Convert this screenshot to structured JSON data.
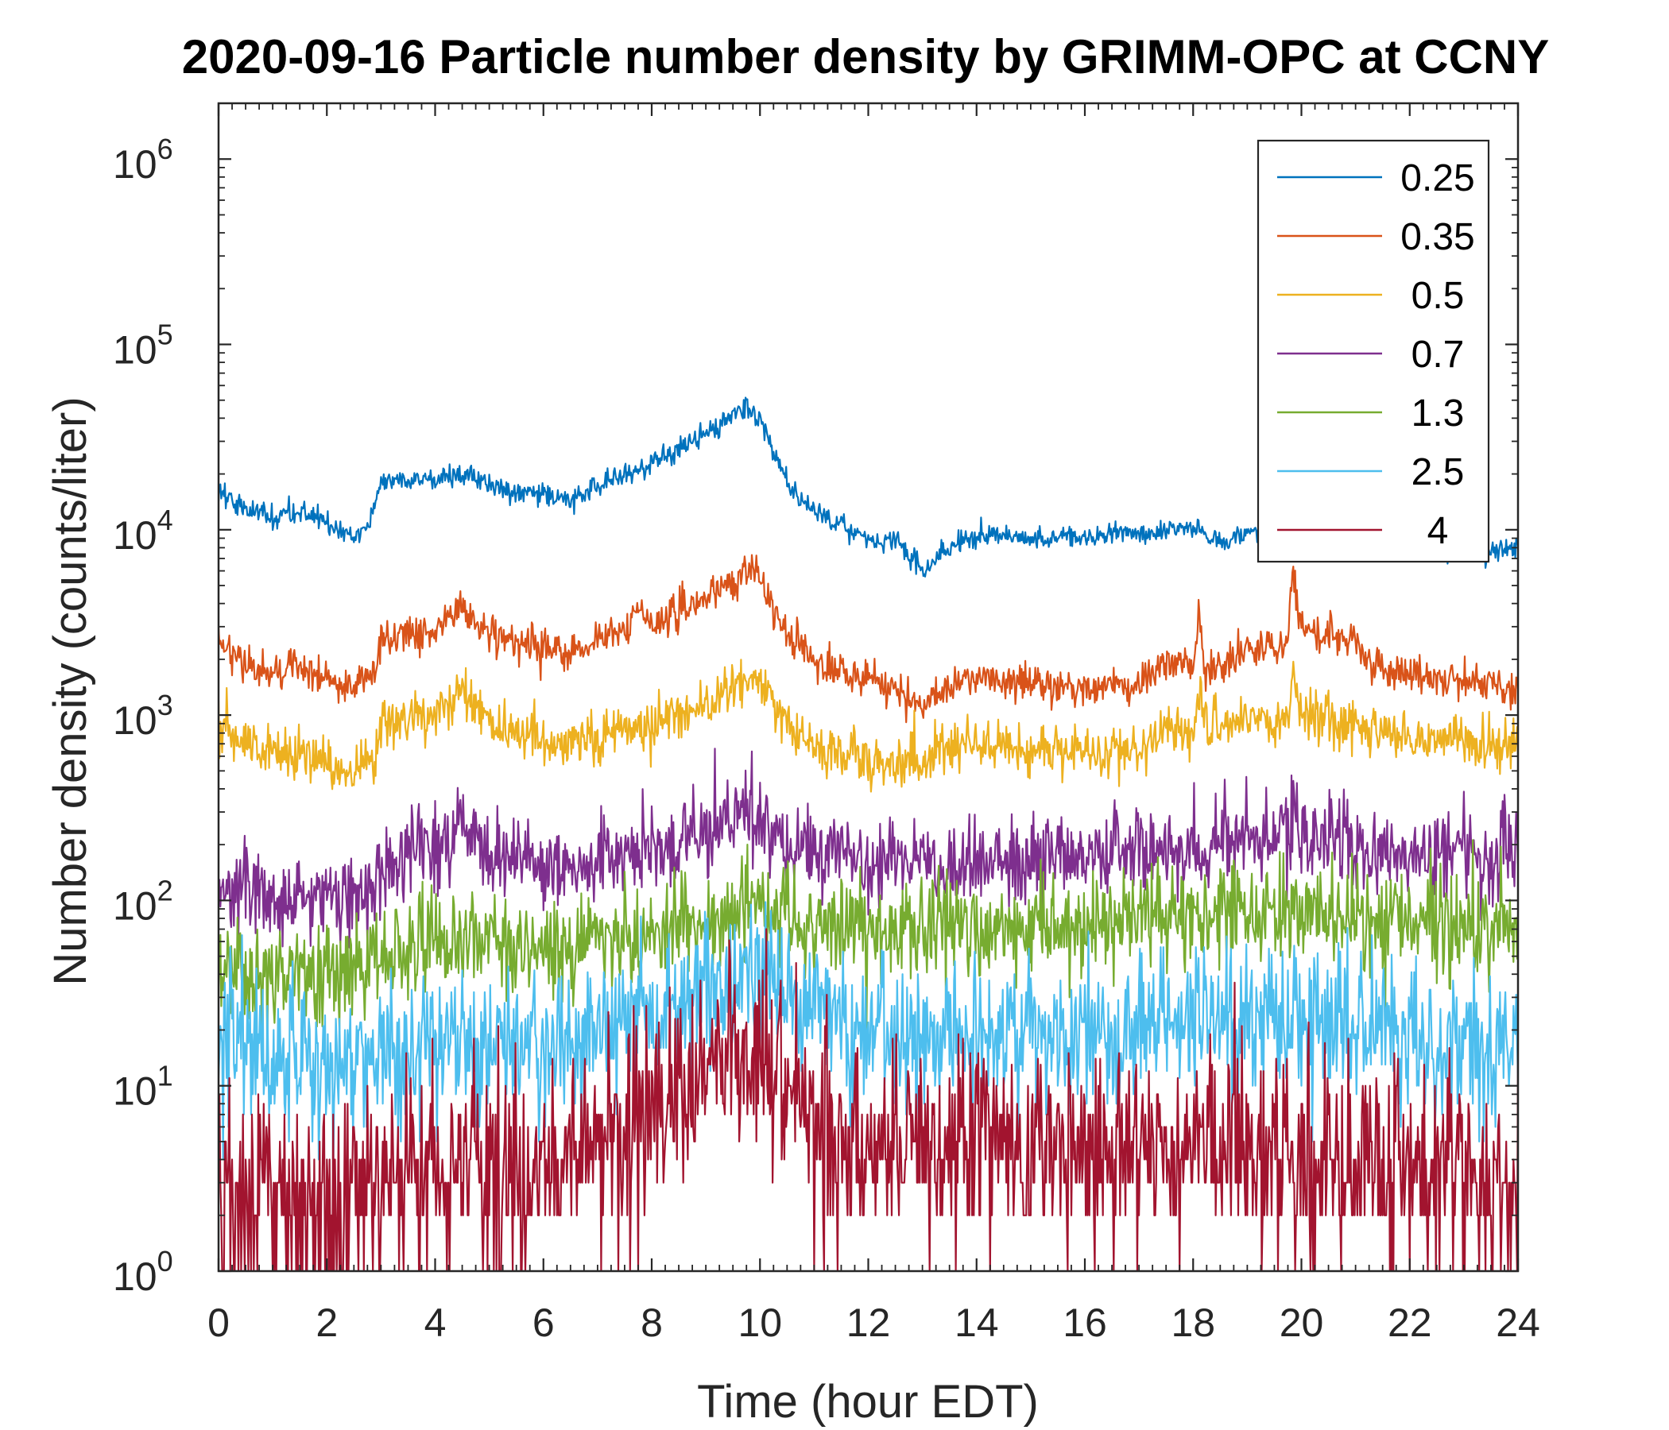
{
  "chart_data": {
    "type": "line",
    "title": "2020-09-16 Particle number density by GRIMM-OPC at CCNY",
    "xlabel": "Time (hour EDT)",
    "ylabel": "Number density (counts/liter)",
    "xlim": [
      0,
      24
    ],
    "ylim": [
      1,
      2000000
    ],
    "yscale": "log",
    "xticks": [
      0,
      2,
      4,
      6,
      8,
      10,
      12,
      14,
      16,
      18,
      20,
      22,
      24
    ],
    "yticks": [
      {
        "base": "10",
        "exp": "0",
        "value": 1
      },
      {
        "base": "10",
        "exp": "1",
        "value": 10
      },
      {
        "base": "10",
        "exp": "2",
        "value": 100
      },
      {
        "base": "10",
        "exp": "3",
        "value": 1000
      },
      {
        "base": "10",
        "exp": "4",
        "value": 10000
      },
      {
        "base": "10",
        "exp": "5",
        "value": 100000
      },
      {
        "base": "10",
        "exp": "6",
        "value": 1000000
      }
    ],
    "legend_position": "top-right",
    "box": true,
    "series": [
      {
        "name": "0.25",
        "color": "#0072BD",
        "noise": 0.03,
        "x": [
          0,
          0.5,
          1,
          1.5,
          2,
          2.5,
          2.8,
          3,
          4,
          4.5,
          5,
          5.5,
          6,
          6.5,
          7,
          8,
          9,
          9.5,
          9.7,
          10,
          10.3,
          10.6,
          11,
          11.5,
          12,
          12.5,
          13,
          13.5,
          14,
          15,
          16,
          17,
          18,
          18.5,
          19,
          20,
          21,
          22,
          23,
          24
        ],
        "values": [
          16000,
          13000,
          11500,
          13000,
          11000,
          9000,
          11000,
          18000,
          19000,
          20000,
          18000,
          15500,
          16000,
          14500,
          17000,
          23000,
          33000,
          41000,
          45000,
          40000,
          25000,
          16000,
          13000,
          10500,
          8800,
          9000,
          6000,
          8000,
          9300,
          9000,
          9000,
          9500,
          10500,
          8500,
          9800,
          9800,
          9000,
          8500,
          7500,
          8000
        ]
      },
      {
        "name": "0.35",
        "color": "#D95319",
        "noise": 0.05,
        "x": [
          0,
          0.5,
          1,
          1.5,
          2,
          2.5,
          2.9,
          3,
          4,
          4.5,
          5,
          5.5,
          6,
          6.5,
          7,
          7.6,
          7.7,
          8,
          9,
          9.8,
          10,
          10.3,
          10.6,
          11,
          12,
          12.5,
          13,
          13.5,
          14,
          15,
          16,
          17,
          17.6,
          18,
          18.1,
          18.2,
          19,
          19.75,
          19.85,
          19.95,
          20,
          21,
          21.3,
          22,
          23,
          24
        ],
        "values": [
          2500,
          1900,
          1700,
          1800,
          1550,
          1350,
          1600,
          2600,
          2800,
          3600,
          2800,
          2500,
          2200,
          2100,
          2500,
          3000,
          3800,
          3100,
          4200,
          6000,
          5400,
          3500,
          2500,
          1900,
          1600,
          1300,
          1050,
          1500,
          1550,
          1500,
          1400,
          1450,
          2000,
          1800,
          3600,
          1700,
          2200,
          2400,
          7000,
          3400,
          2900,
          2600,
          1800,
          1700,
          1500,
          1400
        ]
      },
      {
        "name": "0.5",
        "color": "#EDB120",
        "noise": 0.07,
        "x": [
          0,
          0.5,
          1,
          1.5,
          2,
          2.5,
          2.9,
          3,
          4,
          4.5,
          5,
          5.5,
          6,
          6.5,
          7,
          8,
          9,
          9.8,
          10,
          10.3,
          10.6,
          11,
          12,
          13,
          13.5,
          14,
          15,
          16,
          17,
          17.6,
          18,
          18.1,
          18.2,
          19,
          19.75,
          19.85,
          19.95,
          20,
          21,
          22,
          23,
          24
        ],
        "values": [
          900,
          680,
          620,
          640,
          570,
          480,
          600,
          900,
          1000,
          1400,
          900,
          800,
          720,
          680,
          780,
          900,
          1150,
          1600,
          1550,
          1100,
          800,
          650,
          570,
          530,
          700,
          680,
          650,
          620,
          650,
          900,
          800,
          1300,
          850,
          950,
          1000,
          2000,
          1100,
          1000,
          900,
          760,
          700,
          680
        ]
      },
      {
        "name": "0.7",
        "color": "#7E2F8E",
        "noise": 0.12,
        "x": [
          0,
          1,
          2,
          2.5,
          3,
          4,
          4.5,
          5,
          6,
          7,
          8,
          9,
          9.8,
          10,
          10.5,
          11,
          12,
          13,
          14,
          15,
          16,
          17,
          18,
          19,
          19.8,
          19.9,
          20,
          21,
          22,
          23,
          24
        ],
        "values": [
          120,
          110,
          110,
          100,
          150,
          200,
          250,
          180,
          150,
          160,
          180,
          220,
          300,
          280,
          200,
          170,
          170,
          160,
          170,
          170,
          170,
          180,
          200,
          210,
          220,
          400,
          210,
          200,
          180,
          180,
          170
        ]
      },
      {
        "name": "1.3",
        "color": "#77AC30",
        "noise": 0.14,
        "x": [
          0,
          1,
          2,
          2.5,
          3,
          4,
          5,
          6,
          7,
          8,
          9,
          9.8,
          10,
          10.5,
          11,
          12,
          13,
          14,
          15,
          16,
          17,
          18,
          19,
          20,
          21,
          22,
          23,
          24
        ],
        "values": [
          45,
          40,
          42,
          40,
          50,
          60,
          60,
          58,
          62,
          68,
          75,
          95,
          100,
          80,
          70,
          70,
          68,
          70,
          72,
          72,
          80,
          90,
          90,
          85,
          80,
          78,
          75,
          75
        ]
      },
      {
        "name": "2.5",
        "color": "#4DBEEE",
        "noise": 0.2,
        "x": [
          0,
          1,
          2,
          3,
          4,
          5,
          6,
          7,
          8,
          9,
          9.8,
          10,
          10.5,
          11,
          12,
          13,
          14,
          15,
          16,
          17,
          18,
          19,
          20,
          21,
          22,
          23,
          24
        ],
        "values": [
          18,
          15,
          14,
          14,
          17,
          18,
          18,
          20,
          25,
          32,
          42,
          40,
          30,
          24,
          20,
          19,
          20,
          20,
          20,
          21,
          21,
          22,
          22,
          20,
          18,
          16,
          16
        ]
      },
      {
        "name": "4",
        "color": "#A2142F",
        "noise": 0.28,
        "x": [
          0,
          1,
          2,
          3,
          4,
          5,
          6,
          7,
          8,
          9,
          9.8,
          10,
          10.5,
          11,
          12,
          13,
          14,
          15,
          16,
          17,
          18,
          19,
          20,
          21,
          22,
          23,
          24
        ],
        "values": [
          3,
          2.5,
          2.2,
          3.5,
          3.5,
          3.2,
          3.5,
          5,
          7.5,
          12,
          17,
          17,
          10,
          6,
          5,
          4.5,
          5,
          5,
          4.5,
          4.5,
          4.5,
          4.5,
          4,
          4,
          3.5,
          3.2,
          3
        ]
      }
    ]
  }
}
